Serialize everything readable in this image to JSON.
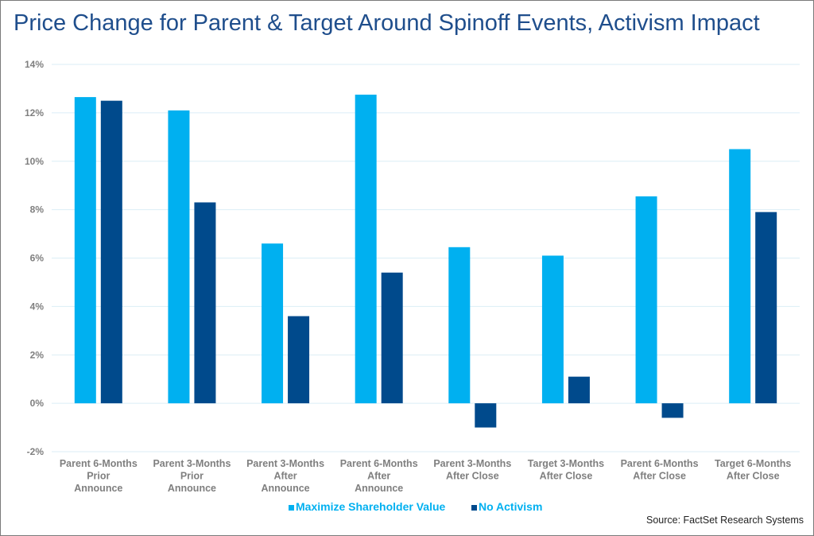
{
  "chart_data": {
    "type": "bar",
    "title": "Price Change for Parent & Target Around Spinoff Events, Activism Impact",
    "source": "Source: FactSet Research Systems",
    "categories": [
      [
        "Parent 6-Months",
        "Prior",
        "Announce"
      ],
      [
        "Parent 3-Months",
        "Prior",
        "Announce"
      ],
      [
        "Parent 3-Months",
        "After",
        "Announce"
      ],
      [
        "Parent 6-Months",
        "After",
        "Announce"
      ],
      [
        "Parent 3-Months",
        "After Close"
      ],
      [
        "Target 3-Months",
        "After Close"
      ],
      [
        "Parent 6-Months",
        "After Close"
      ],
      [
        "Target 6-Months",
        "After Close"
      ]
    ],
    "series": [
      {
        "name": "Maximize Shareholder Value",
        "color": "#00b0f0",
        "values": [
          12.65,
          12.1,
          6.6,
          12.75,
          6.45,
          6.1,
          8.55,
          10.5
        ]
      },
      {
        "name": "No Activism",
        "color": "#004a8c",
        "values": [
          12.5,
          8.3,
          3.6,
          5.4,
          -1.0,
          1.1,
          -0.6,
          7.9
        ]
      }
    ],
    "ylim": [
      -2,
      14
    ],
    "yticks": [
      "-2%",
      "0%",
      "2%",
      "4%",
      "6%",
      "8%",
      "10%",
      "12%",
      "14%"
    ],
    "ytick_values": [
      -2,
      0,
      2,
      4,
      6,
      8,
      10,
      12,
      14
    ],
    "grid": true,
    "legend_position": "bottom"
  }
}
